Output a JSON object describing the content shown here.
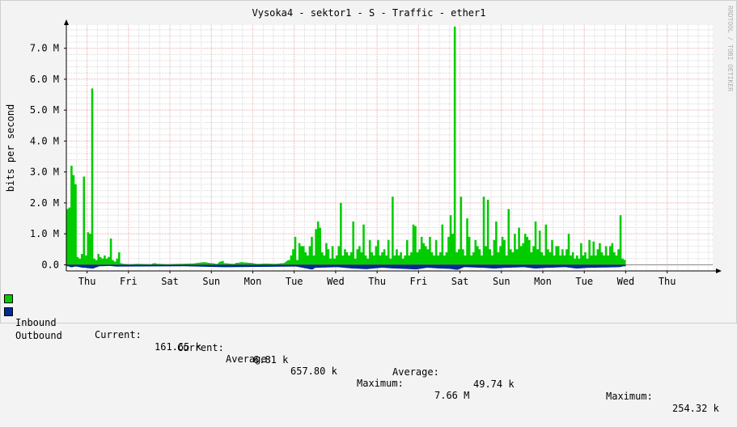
{
  "colors": {
    "inbound": "#00cc00",
    "outbound": "#002a97",
    "grid_major": "#f0b0b0",
    "grid_minor": "#d8d8d8",
    "axis": "#000000"
  },
  "chart_data": {
    "type": "area",
    "title": "Vysoka4 - sektor1 - S - Traffic - ether1",
    "ylabel": "bits per second",
    "watermark": "RRDTOOL / TOBI OETIKER",
    "ylim": [
      -0.2,
      7.75
    ],
    "yticks": [
      {
        "value": 0,
        "label": "0.0"
      },
      {
        "value": 1,
        "label": "1.0 M"
      },
      {
        "value": 2,
        "label": "2.0 M"
      },
      {
        "value": 3,
        "label": "3.0 M"
      },
      {
        "value": 4,
        "label": "4.0 M"
      },
      {
        "value": 5,
        "label": "5.0 M"
      },
      {
        "value": 6,
        "label": "6.0 M"
      },
      {
        "value": 7,
        "label": "7.0 M"
      }
    ],
    "xrange": [
      0,
      15.6
    ],
    "xticks": [
      {
        "x": 0.5,
        "label": "Thu"
      },
      {
        "x": 1.5,
        "label": "Fri"
      },
      {
        "x": 2.5,
        "label": "Sat"
      },
      {
        "x": 3.5,
        "label": "Sun"
      },
      {
        "x": 4.5,
        "label": "Mon"
      },
      {
        "x": 5.5,
        "label": "Tue"
      },
      {
        "x": 6.5,
        "label": "Wed"
      },
      {
        "x": 7.5,
        "label": "Thu"
      },
      {
        "x": 8.5,
        "label": "Fri"
      },
      {
        "x": 9.5,
        "label": "Sat"
      },
      {
        "x": 10.5,
        "label": "Sun"
      },
      {
        "x": 11.5,
        "label": "Mon"
      },
      {
        "x": 12.5,
        "label": "Tue"
      },
      {
        "x": 13.5,
        "label": "Wed"
      },
      {
        "x": 14.5,
        "label": "Thu"
      }
    ],
    "series": [
      {
        "name": "Inbound",
        "peaks": [
          [
            0.0,
            1.8
          ],
          [
            0.05,
            1.85
          ],
          [
            0.1,
            3.2
          ],
          [
            0.15,
            2.9
          ],
          [
            0.2,
            2.6
          ],
          [
            0.25,
            0.25
          ],
          [
            0.3,
            0.2
          ],
          [
            0.35,
            0.35
          ],
          [
            0.4,
            2.85
          ],
          [
            0.45,
            0.3
          ],
          [
            0.5,
            1.05
          ],
          [
            0.55,
            1.0
          ],
          [
            0.6,
            5.7
          ],
          [
            0.65,
            0.2
          ],
          [
            0.7,
            0.15
          ],
          [
            0.75,
            0.35
          ],
          [
            0.8,
            0.25
          ],
          [
            0.85,
            0.2
          ],
          [
            0.9,
            0.3
          ],
          [
            0.95,
            0.2
          ],
          [
            1.0,
            0.25
          ],
          [
            1.05,
            0.85
          ],
          [
            1.1,
            0.15
          ],
          [
            1.15,
            0.1
          ],
          [
            1.2,
            0.2
          ],
          [
            1.25,
            0.4
          ],
          [
            1.3,
            0.05
          ],
          [
            1.35,
            0.03
          ],
          [
            1.5,
            0.02
          ],
          [
            1.7,
            0.03
          ],
          [
            2.0,
            0.02
          ],
          [
            2.1,
            0.05
          ],
          [
            2.2,
            0.03
          ],
          [
            2.4,
            0.02
          ],
          [
            2.7,
            0.03
          ],
          [
            3.0,
            0.04
          ],
          [
            3.3,
            0.08
          ],
          [
            3.5,
            0.05
          ],
          [
            3.6,
            0.03
          ],
          [
            3.7,
            0.1
          ],
          [
            3.75,
            0.12
          ],
          [
            3.8,
            0.05
          ],
          [
            4.0,
            0.03
          ],
          [
            4.1,
            0.06
          ],
          [
            4.2,
            0.08
          ],
          [
            4.3,
            0.07
          ],
          [
            4.4,
            0.06
          ],
          [
            4.6,
            0.03
          ],
          [
            4.8,
            0.04
          ],
          [
            5.0,
            0.03
          ],
          [
            5.2,
            0.05
          ],
          [
            5.35,
            0.15
          ],
          [
            5.4,
            0.3
          ],
          [
            5.45,
            0.5
          ],
          [
            5.5,
            0.9
          ],
          [
            5.55,
            0.15
          ],
          [
            5.6,
            0.7
          ],
          [
            5.65,
            0.6
          ],
          [
            5.7,
            0.6
          ],
          [
            5.75,
            0.4
          ],
          [
            5.8,
            0.3
          ],
          [
            5.85,
            0.6
          ],
          [
            5.9,
            0.9
          ],
          [
            5.95,
            0.3
          ],
          [
            6.0,
            1.15
          ],
          [
            6.05,
            1.4
          ],
          [
            6.1,
            1.2
          ],
          [
            6.15,
            0.4
          ],
          [
            6.2,
            0.3
          ],
          [
            6.25,
            0.7
          ],
          [
            6.3,
            0.5
          ],
          [
            6.35,
            0.2
          ],
          [
            6.4,
            0.6
          ],
          [
            6.45,
            0.2
          ],
          [
            6.5,
            0.3
          ],
          [
            6.55,
            0.6
          ],
          [
            6.6,
            2.0
          ],
          [
            6.65,
            0.3
          ],
          [
            6.7,
            0.5
          ],
          [
            6.75,
            0.4
          ],
          [
            6.8,
            0.3
          ],
          [
            6.85,
            0.4
          ],
          [
            6.9,
            1.4
          ],
          [
            6.95,
            0.2
          ],
          [
            7.0,
            0.5
          ],
          [
            7.05,
            0.6
          ],
          [
            7.1,
            0.4
          ],
          [
            7.15,
            1.3
          ],
          [
            7.2,
            0.3
          ],
          [
            7.25,
            0.2
          ],
          [
            7.3,
            0.8
          ],
          [
            7.35,
            0.4
          ],
          [
            7.4,
            0.3
          ],
          [
            7.45,
            0.6
          ],
          [
            7.5,
            0.8
          ],
          [
            7.55,
            0.3
          ],
          [
            7.6,
            0.4
          ],
          [
            7.65,
            0.5
          ],
          [
            7.7,
            0.3
          ],
          [
            7.75,
            0.8
          ],
          [
            7.8,
            0.2
          ],
          [
            7.85,
            2.2
          ],
          [
            7.9,
            0.3
          ],
          [
            7.95,
            0.5
          ],
          [
            8.0,
            0.3
          ],
          [
            8.05,
            0.4
          ],
          [
            8.1,
            0.2
          ],
          [
            8.15,
            0.3
          ],
          [
            8.2,
            0.8
          ],
          [
            8.25,
            0.3
          ],
          [
            8.3,
            0.4
          ],
          [
            8.35,
            1.3
          ],
          [
            8.4,
            1.25
          ],
          [
            8.45,
            0.4
          ],
          [
            8.5,
            0.5
          ],
          [
            8.55,
            0.9
          ],
          [
            8.6,
            0.7
          ],
          [
            8.65,
            0.6
          ],
          [
            8.7,
            0.5
          ],
          [
            8.75,
            0.9
          ],
          [
            8.8,
            0.4
          ],
          [
            8.85,
            0.3
          ],
          [
            8.9,
            0.8
          ],
          [
            8.95,
            0.3
          ],
          [
            9.0,
            0.4
          ],
          [
            9.05,
            1.3
          ],
          [
            9.1,
            0.3
          ],
          [
            9.15,
            0.4
          ],
          [
            9.2,
            0.9
          ],
          [
            9.25,
            1.6
          ],
          [
            9.3,
            1.0
          ],
          [
            9.35,
            7.7
          ],
          [
            9.4,
            0.4
          ],
          [
            9.45,
            0.5
          ],
          [
            9.5,
            2.2
          ],
          [
            9.55,
            0.5
          ],
          [
            9.6,
            0.3
          ],
          [
            9.65,
            1.5
          ],
          [
            9.7,
            0.9
          ],
          [
            9.75,
            0.3
          ],
          [
            9.8,
            0.4
          ],
          [
            9.85,
            0.8
          ],
          [
            9.9,
            0.6
          ],
          [
            9.95,
            0.5
          ],
          [
            10.0,
            0.3
          ],
          [
            10.05,
            2.2
          ],
          [
            10.1,
            0.6
          ],
          [
            10.15,
            2.1
          ],
          [
            10.2,
            0.5
          ],
          [
            10.25,
            0.3
          ],
          [
            10.3,
            0.8
          ],
          [
            10.35,
            1.4
          ],
          [
            10.4,
            0.4
          ],
          [
            10.45,
            0.6
          ],
          [
            10.5,
            0.9
          ],
          [
            10.55,
            0.8
          ],
          [
            10.6,
            0.3
          ],
          [
            10.65,
            1.8
          ],
          [
            10.7,
            0.5
          ],
          [
            10.75,
            0.4
          ],
          [
            10.8,
            1.0
          ],
          [
            10.85,
            0.5
          ],
          [
            10.9,
            1.2
          ],
          [
            10.95,
            0.6
          ],
          [
            11.0,
            0.7
          ],
          [
            11.05,
            1.0
          ],
          [
            11.1,
            0.9
          ],
          [
            11.15,
            0.8
          ],
          [
            11.2,
            0.4
          ],
          [
            11.25,
            0.6
          ],
          [
            11.3,
            1.4
          ],
          [
            11.35,
            0.5
          ],
          [
            11.4,
            1.1
          ],
          [
            11.45,
            0.4
          ],
          [
            11.5,
            0.3
          ],
          [
            11.55,
            1.3
          ],
          [
            11.6,
            0.5
          ],
          [
            11.65,
            0.4
          ],
          [
            11.7,
            0.8
          ],
          [
            11.75,
            0.3
          ],
          [
            11.8,
            0.6
          ],
          [
            11.85,
            0.6
          ],
          [
            11.9,
            0.3
          ],
          [
            11.95,
            0.5
          ],
          [
            12.0,
            0.3
          ],
          [
            12.05,
            0.5
          ],
          [
            12.1,
            1.0
          ],
          [
            12.15,
            0.3
          ],
          [
            12.2,
            0.4
          ],
          [
            12.25,
            0.2
          ],
          [
            12.3,
            0.3
          ],
          [
            12.35,
            0.2
          ],
          [
            12.4,
            0.7
          ],
          [
            12.45,
            0.3
          ],
          [
            12.5,
            0.4
          ],
          [
            12.55,
            0.2
          ],
          [
            12.6,
            0.8
          ],
          [
            12.65,
            0.3
          ],
          [
            12.7,
            0.75
          ],
          [
            12.75,
            0.3
          ],
          [
            12.8,
            0.5
          ],
          [
            12.85,
            0.7
          ],
          [
            12.9,
            0.4
          ],
          [
            12.95,
            0.3
          ],
          [
            13.0,
            0.6
          ],
          [
            13.05,
            0.3
          ],
          [
            13.1,
            0.6
          ],
          [
            13.15,
            0.7
          ],
          [
            13.2,
            0.4
          ],
          [
            13.25,
            0.3
          ],
          [
            13.3,
            0.5
          ],
          [
            13.35,
            1.6
          ],
          [
            13.4,
            0.2
          ],
          [
            13.45,
            0.16
          ]
        ]
      },
      {
        "name": "Outbound",
        "peaks": [
          [
            0.0,
            -0.05
          ],
          [
            0.1,
            -0.08
          ],
          [
            0.2,
            -0.06
          ],
          [
            0.4,
            -0.1
          ],
          [
            0.6,
            -0.12
          ],
          [
            0.8,
            -0.05
          ],
          [
            1.0,
            -0.04
          ],
          [
            1.2,
            -0.06
          ],
          [
            2.8,
            -0.05
          ],
          [
            3.8,
            -0.08
          ],
          [
            5.5,
            -0.06
          ],
          [
            5.9,
            -0.15
          ],
          [
            6.0,
            -0.1
          ],
          [
            6.5,
            -0.08
          ],
          [
            6.9,
            -0.12
          ],
          [
            7.2,
            -0.14
          ],
          [
            7.6,
            -0.1
          ],
          [
            7.9,
            -0.12
          ],
          [
            8.4,
            -0.15
          ],
          [
            8.7,
            -0.1
          ],
          [
            9.0,
            -0.12
          ],
          [
            9.2,
            -0.13
          ],
          [
            9.4,
            -0.16
          ],
          [
            9.6,
            -0.08
          ],
          [
            10.0,
            -0.1
          ],
          [
            10.3,
            -0.12
          ],
          [
            10.6,
            -0.1
          ],
          [
            11.0,
            -0.08
          ],
          [
            11.3,
            -0.12
          ],
          [
            11.6,
            -0.1
          ],
          [
            12.0,
            -0.08
          ],
          [
            12.3,
            -0.12
          ],
          [
            12.6,
            -0.1
          ],
          [
            13.0,
            -0.09
          ],
          [
            13.3,
            -0.08
          ],
          [
            13.45,
            -0.05
          ]
        ]
      }
    ]
  },
  "legend": {
    "inbound": {
      "label": "Inbound",
      "current_label": "Current:",
      "current": "161.65 k",
      "average_label": "Average:",
      "average": "657.80 k",
      "maximum_label": "Maximum:",
      "maximum": "7.66 M"
    },
    "outbound": {
      "label": "Outbound",
      "current_label": "Current:",
      "current": "6.81 k",
      "average_label": "Average:",
      "average": "49.74 k",
      "maximum_label": "Maximum:",
      "maximum": "254.32 k"
    }
  }
}
